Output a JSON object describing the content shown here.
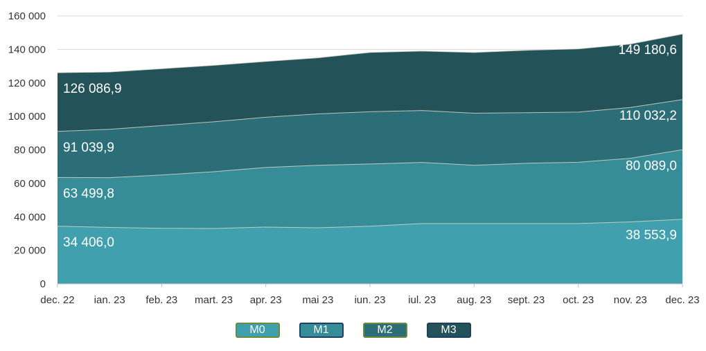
{
  "chart_data": {
    "type": "area",
    "stacked": true,
    "title": "",
    "xlabel": "",
    "ylabel": "",
    "categories": [
      "dec. 22",
      "ian. 23",
      "feb. 23",
      "mart. 23",
      "apr. 23",
      "mai 23",
      "iun. 23",
      "iul. 23",
      "aug. 23",
      "sept. 23",
      "oct. 23",
      "nov. 23",
      "dec. 23"
    ],
    "ylim": [
      0,
      160000
    ],
    "yticks": [
      0,
      20000,
      40000,
      60000,
      80000,
      100000,
      120000,
      140000,
      160000
    ],
    "ytick_labels": [
      "0",
      "20 000",
      "40 000",
      "60 000",
      "80 000",
      "100 000",
      "120 000",
      "140 000",
      "160 000"
    ],
    "grid": true,
    "legend_position": "bottom",
    "series": [
      {
        "name": "M0",
        "color": "#40A0AE",
        "legend_border": "#6E8B3D",
        "values": [
          34406.0,
          33700,
          33200,
          33100,
          33900,
          33500,
          34400,
          36000,
          36000,
          36000,
          36000,
          37000,
          38553.9
        ],
        "labels": [
          {
            "index": 0,
            "text": "34 406,0"
          },
          {
            "index": 12,
            "text": "38 553,9"
          }
        ]
      },
      {
        "name": "M1",
        "color": "#368C97",
        "legend_border": "#1F3F63",
        "values": [
          63499.8,
          63400,
          65000,
          67000,
          69500,
          70800,
          71600,
          72500,
          70800,
          72000,
          72600,
          75000,
          80089.0
        ],
        "labels": [
          {
            "index": 0,
            "text": "63 499,8"
          },
          {
            "index": 12,
            "text": "80 089,0"
          }
        ]
      },
      {
        "name": "M2",
        "color": "#2B6E78",
        "legend_border": "#6E8B3D",
        "values": [
          91039.9,
          92300,
          94500,
          96800,
          99500,
          101500,
          102800,
          103500,
          101900,
          102200,
          102600,
          105300,
          110032.2
        ],
        "labels": [
          {
            "index": 0,
            "text": "91 039,9"
          },
          {
            "index": 12,
            "text": "110 032,2"
          }
        ]
      },
      {
        "name": "M3",
        "color": "#235359",
        "legend_border": "#1F3F63",
        "values": [
          126086.9,
          126500,
          128500,
          130500,
          132800,
          135000,
          138200,
          139000,
          138200,
          139500,
          140300,
          143200,
          149180.6
        ],
        "labels": [
          {
            "index": 0,
            "text": "126 086,9"
          },
          {
            "index": 12,
            "text": "149 180,6"
          }
        ]
      }
    ]
  }
}
